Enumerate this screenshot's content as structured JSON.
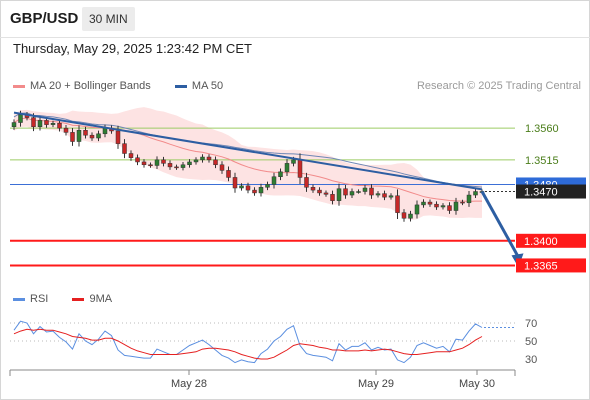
{
  "header": {
    "symbol": "GBP/USD",
    "timeframe": "30 MIN",
    "datetime": "Thursday, May 29, 2025 1:23:42 PM CET"
  },
  "legend": {
    "ma20_label": "MA 20 + Bollinger Bands",
    "ma20_color": "#f28b8b",
    "ma50_label": "MA 50",
    "ma50_color": "#2d5ea2"
  },
  "copyright": "Research © 2025 Trading Central",
  "colors": {
    "up": "#2e7d32",
    "down": "#c62828",
    "resistance": "#9ccc65",
    "support": "#ff1a1a",
    "trend": "#2d5ea2"
  },
  "chart_data": [
    {
      "type": "candlestick",
      "ylim": [
        1.335,
        1.36
      ],
      "grid": false,
      "legend_position": "top-left",
      "x_tick_labels": [
        "May 28",
        "May 29",
        "May 30"
      ],
      "x_tick_positions": [
        10,
        23,
        30
      ],
      "closes": [
        1.3568,
        1.3579,
        1.3575,
        1.3562,
        1.3571,
        1.3565,
        1.3567,
        1.356,
        1.3554,
        1.3541,
        1.3557,
        1.355,
        1.3546,
        1.3552,
        1.356,
        1.3556,
        1.3538,
        1.3524,
        1.3518,
        1.3512,
        1.3508,
        1.3507,
        1.3515,
        1.351,
        1.3505,
        1.3504,
        1.3508,
        1.3512,
        1.3515,
        1.3519,
        1.3515,
        1.3508,
        1.35,
        1.349,
        1.3475,
        1.3478,
        1.3472,
        1.3468,
        1.3476,
        1.348,
        1.3491,
        1.3498,
        1.351,
        1.3515,
        1.349,
        1.3476,
        1.3472,
        1.3468,
        1.3466,
        1.3457,
        1.3474,
        1.3465,
        1.347,
        1.347,
        1.3475,
        1.3465,
        1.3467,
        1.3462,
        1.3464,
        1.344,
        1.3432,
        1.3438,
        1.3451,
        1.3455,
        1.3452,
        1.3448,
        1.345,
        1.3443,
        1.3455,
        1.3454,
        1.3465,
        1.347,
        1.347
      ],
      "price_levels": [
        {
          "value": 1.356,
          "label": "1.3560",
          "kind": "resistance"
        },
        {
          "value": 1.3515,
          "label": "1.3515",
          "kind": "resistance"
        },
        {
          "value": 1.348,
          "label": "1.3480",
          "kind": "pivot"
        },
        {
          "value": 1.34,
          "label": "1.3400",
          "kind": "support"
        },
        {
          "value": 1.3365,
          "label": "1.3365",
          "kind": "support"
        }
      ],
      "last_price": "1.3470",
      "trendline": {
        "from": [
          0,
          1.3582
        ],
        "to": [
          72,
          1.3473
        ]
      },
      "forecast_arrow": {
        "from": [
          72,
          1.347
        ],
        "to": [
          77,
          1.3368
        ]
      }
    },
    {
      "type": "line",
      "name_rsi": "RSI",
      "name_ma": "9MA",
      "rsi_color": "#5b8fe0",
      "ma_color": "#e52020",
      "ylim": [
        20,
        80
      ],
      "y_ticks": [
        "70",
        "50",
        "30"
      ],
      "y_tick_values": [
        70,
        50,
        30
      ],
      "rsi": [
        62,
        72,
        70,
        58,
        66,
        60,
        61,
        54,
        49,
        41,
        58,
        50,
        46,
        52,
        61,
        56,
        40,
        34,
        33,
        32,
        31,
        31,
        41,
        38,
        35,
        35,
        40,
        45,
        48,
        51,
        46,
        40,
        34,
        31,
        26,
        29,
        27,
        26,
        36,
        41,
        50,
        55,
        63,
        67,
        45,
        36,
        34,
        33,
        32,
        28,
        47,
        40,
        44,
        44,
        48,
        40,
        43,
        40,
        41,
        29,
        26,
        32,
        45,
        48,
        45,
        42,
        44,
        38,
        52,
        51,
        61,
        69,
        65
      ],
      "ma9": [
        58,
        61,
        63,
        62,
        63,
        62,
        62,
        60,
        58,
        55,
        54,
        53,
        51,
        51,
        53,
        53,
        50,
        46,
        42,
        39,
        37,
        35,
        35,
        35,
        35,
        35,
        36,
        37,
        38,
        41,
        42,
        42,
        41,
        40,
        38,
        35,
        33,
        31,
        30,
        30,
        32,
        36,
        40,
        45,
        47,
        46,
        45,
        43,
        42,
        40,
        40,
        39,
        39,
        39,
        40,
        39,
        40,
        41,
        40,
        38,
        36,
        35,
        35,
        36,
        37,
        38,
        38,
        38,
        40,
        42,
        46,
        51,
        55
      ]
    }
  ]
}
